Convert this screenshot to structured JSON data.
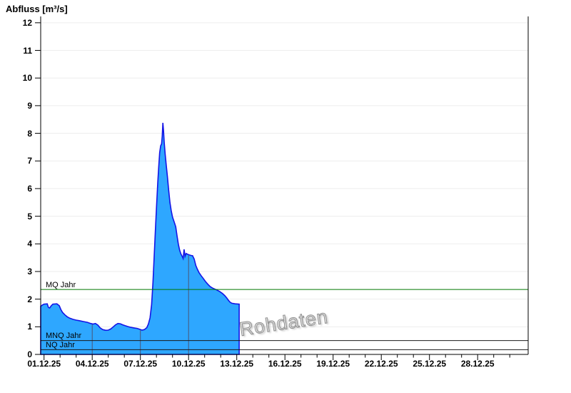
{
  "chart_data": {
    "type": "area",
    "title": "Abfluss [m³/s]",
    "watermark": "Rohdaten",
    "series_name": "Abfluss",
    "unit": "m³/s",
    "x_tick_labels": [
      "01.12.25",
      "04.12.25",
      "07.12.25",
      "10.12.25",
      "13.12.25",
      "16.12.25",
      "19.12.25",
      "22.12.25",
      "25.12.25",
      "28.12.25"
    ],
    "x_major_tick_days": [
      0,
      3,
      6,
      9,
      12,
      15,
      18,
      21,
      24,
      27
    ],
    "x_minor_tick_step_days": 1,
    "x_domain_days": [
      -0.21,
      30.15
    ],
    "y_ticks": [
      0,
      1,
      2,
      3,
      4,
      5,
      6,
      7,
      8,
      9,
      10,
      11,
      12
    ],
    "y_domain": [
      0,
      12.23
    ],
    "grid": {
      "horizontal": true,
      "color": "#EDEDED"
    },
    "axis_color": "#000000",
    "area": {
      "fill": "#2EA7FF",
      "stroke": "#1414E6"
    },
    "in_area_day_lines": {
      "days": [
        3,
        6,
        9
      ],
      "color": "#4A5578"
    },
    "ref_lines": [
      {
        "label": "MQ Jahr",
        "value": 2.35,
        "color": "#007800"
      },
      {
        "label": "MNQ Jahr",
        "value": 0.5,
        "color": "#1A1A1A"
      },
      {
        "label": "NQ Jahr",
        "value": 0.17,
        "color": "#1A1A1A"
      }
    ],
    "points": [
      [
        -0.21,
        1.74
      ],
      [
        -0.1,
        1.79
      ],
      [
        0.0,
        1.82
      ],
      [
        0.2,
        1.83
      ],
      [
        0.27,
        1.7
      ],
      [
        0.35,
        1.68
      ],
      [
        0.45,
        1.76
      ],
      [
        0.55,
        1.82
      ],
      [
        0.8,
        1.83
      ],
      [
        0.95,
        1.76
      ],
      [
        1.05,
        1.62
      ],
      [
        1.15,
        1.52
      ],
      [
        1.3,
        1.43
      ],
      [
        1.45,
        1.36
      ],
      [
        1.6,
        1.31
      ],
      [
        1.8,
        1.27
      ],
      [
        2.0,
        1.24
      ],
      [
        2.2,
        1.22
      ],
      [
        2.45,
        1.19
      ],
      [
        2.7,
        1.16
      ],
      [
        2.9,
        1.12
      ],
      [
        3.05,
        1.1
      ],
      [
        3.2,
        1.12
      ],
      [
        3.35,
        1.06
      ],
      [
        3.5,
        0.96
      ],
      [
        3.65,
        0.9
      ],
      [
        3.85,
        0.87
      ],
      [
        4.0,
        0.88
      ],
      [
        4.15,
        0.92
      ],
      [
        4.3,
        0.99
      ],
      [
        4.45,
        1.07
      ],
      [
        4.6,
        1.12
      ],
      [
        4.75,
        1.11
      ],
      [
        4.9,
        1.07
      ],
      [
        5.05,
        1.04
      ],
      [
        5.2,
        1.01
      ],
      [
        5.4,
        0.98
      ],
      [
        5.6,
        0.96
      ],
      [
        5.8,
        0.94
      ],
      [
        5.95,
        0.91
      ],
      [
        6.1,
        0.88
      ],
      [
        6.25,
        0.9
      ],
      [
        6.4,
        0.97
      ],
      [
        6.5,
        1.1
      ],
      [
        6.6,
        1.32
      ],
      [
        6.7,
        1.8
      ],
      [
        6.78,
        2.6
      ],
      [
        6.86,
        3.6
      ],
      [
        6.94,
        4.6
      ],
      [
        7.02,
        5.5
      ],
      [
        7.08,
        6.2
      ],
      [
        7.14,
        6.8
      ],
      [
        7.2,
        7.3
      ],
      [
        7.26,
        7.55
      ],
      [
        7.32,
        7.62
      ],
      [
        7.36,
        7.9
      ],
      [
        7.4,
        8.38
      ],
      [
        7.44,
        8.1
      ],
      [
        7.48,
        7.7
      ],
      [
        7.54,
        7.25
      ],
      [
        7.6,
        6.9
      ],
      [
        7.68,
        6.45
      ],
      [
        7.76,
        5.95
      ],
      [
        7.84,
        5.5
      ],
      [
        7.92,
        5.2
      ],
      [
        8.0,
        4.97
      ],
      [
        8.1,
        4.8
      ],
      [
        8.2,
        4.62
      ],
      [
        8.28,
        4.3
      ],
      [
        8.36,
        4.0
      ],
      [
        8.44,
        3.78
      ],
      [
        8.52,
        3.64
      ],
      [
        8.6,
        3.55
      ],
      [
        8.66,
        3.47
      ],
      [
        8.72,
        3.8
      ],
      [
        8.78,
        3.55
      ],
      [
        8.85,
        3.65
      ],
      [
        8.95,
        3.62
      ],
      [
        9.05,
        3.6
      ],
      [
        9.15,
        3.58
      ],
      [
        9.25,
        3.57
      ],
      [
        9.35,
        3.45
      ],
      [
        9.45,
        3.22
      ],
      [
        9.55,
        3.08
      ],
      [
        9.65,
        2.96
      ],
      [
        9.78,
        2.85
      ],
      [
        9.9,
        2.76
      ],
      [
        10.05,
        2.64
      ],
      [
        10.2,
        2.54
      ],
      [
        10.35,
        2.45
      ],
      [
        10.5,
        2.4
      ],
      [
        10.65,
        2.36
      ],
      [
        10.8,
        2.32
      ],
      [
        10.95,
        2.27
      ],
      [
        11.1,
        2.21
      ],
      [
        11.25,
        2.13
      ],
      [
        11.38,
        2.04
      ],
      [
        11.48,
        1.96
      ],
      [
        11.58,
        1.89
      ],
      [
        11.7,
        1.85
      ],
      [
        11.9,
        1.83
      ],
      [
        12.15,
        1.82
      ]
    ]
  }
}
